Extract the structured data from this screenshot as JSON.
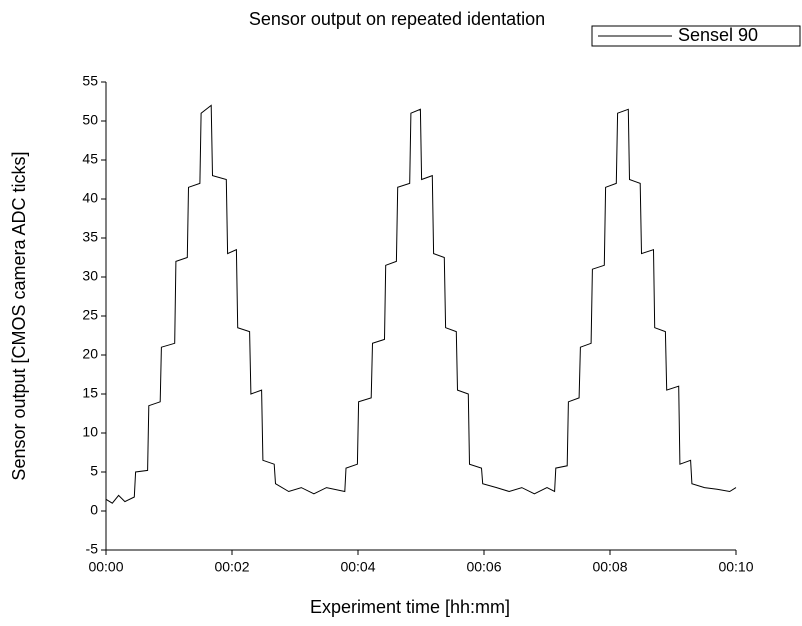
{
  "chart_data": {
    "type": "line",
    "title": "Sensor output on repeated identation",
    "x_label": "Experiment time [hh:mm]",
    "y_label": "Sensor output [CMOS camera ADC ticks]",
    "x": [
      0,
      0.1,
      0.2,
      0.3,
      0.45,
      0.47,
      0.66,
      0.68,
      0.86,
      0.88,
      1.09,
      1.11,
      1.29,
      1.31,
      1.49,
      1.51,
      1.67,
      1.69,
      1.91,
      1.93,
      2.07,
      2.09,
      2.28,
      2.3,
      2.47,
      2.49,
      2.67,
      2.69,
      2.9,
      3.1,
      3.3,
      3.5,
      3.79,
      3.81,
      3.99,
      4.01,
      4.21,
      4.23,
      4.42,
      4.44,
      4.61,
      4.63,
      4.82,
      4.84,
      4.99,
      5.01,
      5.18,
      5.2,
      5.37,
      5.39,
      5.56,
      5.58,
      5.75,
      5.77,
      5.96,
      5.98,
      6.2,
      6.4,
      6.6,
      6.8,
      7.0,
      7.12,
      7.14,
      7.32,
      7.34,
      7.51,
      7.53,
      7.7,
      7.72,
      7.91,
      7.93,
      8.1,
      8.12,
      8.29,
      8.31,
      8.48,
      8.5,
      8.69,
      8.71,
      8.88,
      8.9,
      9.09,
      9.11,
      9.28,
      9.3,
      9.5,
      9.7,
      9.9,
      10
    ],
    "series": [
      {
        "name": "Sensel 90",
        "color": "#000000",
        "values": [
          1.5,
          1.0,
          2.0,
          1.2,
          1.8,
          5,
          5.2,
          13.5,
          14,
          21,
          21.5,
          32,
          32.5,
          41.5,
          42,
          51,
          52,
          43,
          42.5,
          33,
          33.5,
          23.5,
          23,
          15,
          15.5,
          6.5,
          6,
          3.5,
          2.5,
          3,
          2.2,
          3,
          2.5,
          5.5,
          6,
          14,
          14.5,
          21.5,
          22,
          31.5,
          32,
          41.5,
          42,
          51,
          51.5,
          42.5,
          43,
          33,
          32.5,
          23.5,
          23,
          15.5,
          15,
          6,
          5.5,
          3.5,
          3,
          2.5,
          3,
          2.2,
          3,
          2.5,
          5.5,
          5.8,
          14,
          14.5,
          21,
          21.5,
          31,
          31.5,
          41.5,
          42,
          51,
          51.5,
          42.5,
          42,
          33,
          33.5,
          23.5,
          23,
          15.5,
          16,
          6,
          6.5,
          3.5,
          3,
          2.8,
          2.5,
          3
        ]
      }
    ],
    "xlim": [
      0,
      10
    ],
    "xticks": [
      {
        "value": 0,
        "label": "00:00"
      },
      {
        "value": 2,
        "label": "00:02"
      },
      {
        "value": 4,
        "label": "00:04"
      },
      {
        "value": 6,
        "label": "00:06"
      },
      {
        "value": 8,
        "label": "00:08"
      },
      {
        "value": 10,
        "label": "00:10"
      }
    ],
    "ylim": [
      -5,
      55
    ],
    "yticks": [
      -5,
      0,
      5,
      10,
      15,
      20,
      25,
      30,
      35,
      40,
      45,
      50,
      55
    ],
    "legend": "top-right"
  }
}
